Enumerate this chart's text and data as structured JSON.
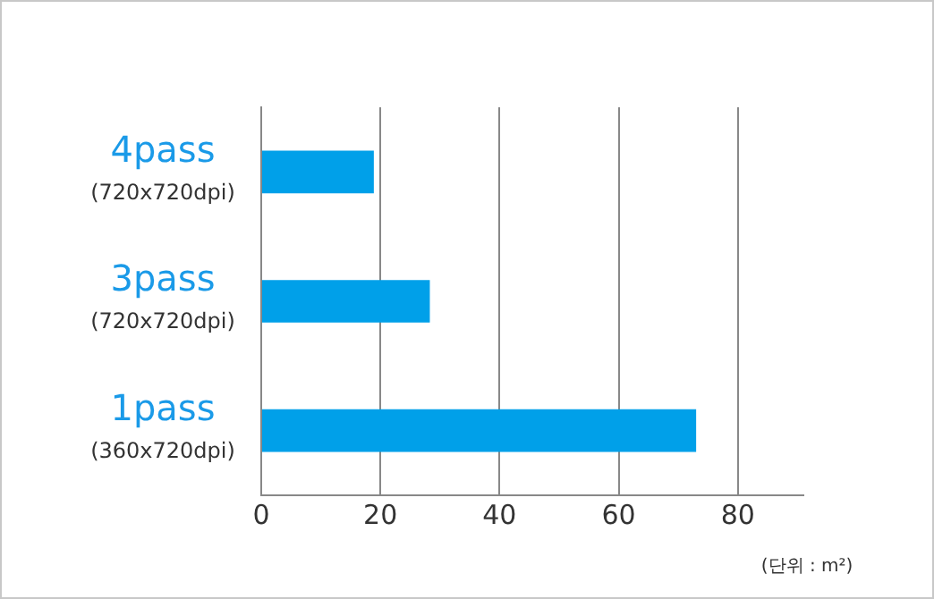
{
  "chart_data": {
    "type": "bar",
    "orientation": "horizontal",
    "xlabel": "(단위 : m²)",
    "categories": [
      "4pass\n(720x720dpi)",
      "3pass\n(720x720dpi)",
      "1pass\n(360x720dpi)"
    ],
    "values": [
      18.9,
      28.3,
      73
    ],
    "color": "#00a0e9",
    "xlim": [
      0,
      91
    ],
    "xticks": [
      0,
      20,
      40,
      60,
      80
    ],
    "grid": "x",
    "legend": false
  }
}
